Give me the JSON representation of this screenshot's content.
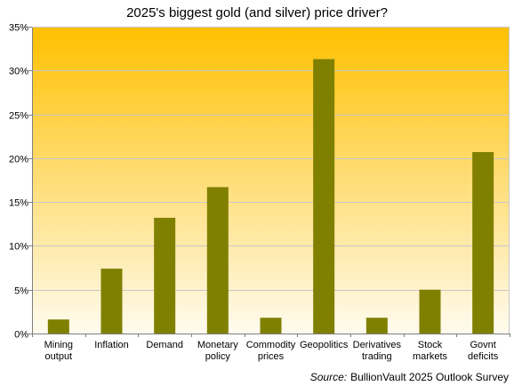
{
  "chart_data": {
    "type": "bar",
    "title": "2025's biggest gold (and silver) price driver?",
    "categories": [
      [
        "Mining",
        "output"
      ],
      [
        "Inflation"
      ],
      [
        "Demand"
      ],
      [
        "Monetary",
        "policy"
      ],
      [
        "Commodity",
        "prices"
      ],
      [
        "Geopolitics"
      ],
      [
        "Derivatives",
        "trading"
      ],
      [
        "Stock",
        "markets"
      ],
      [
        "Govnt",
        "deficits"
      ]
    ],
    "values": [
      1.6,
      7.4,
      13.2,
      16.7,
      1.8,
      31.3,
      1.8,
      5.0,
      20.7
    ],
    "ylim": [
      0,
      35
    ],
    "yticks": [
      0,
      5,
      10,
      15,
      20,
      25,
      30,
      35
    ],
    "ytick_labels": [
      "0%",
      "5%",
      "10%",
      "15%",
      "20%",
      "25%",
      "30%",
      "35%"
    ],
    "xlabel": "",
    "ylabel": "",
    "grid": true,
    "legend": "none",
    "colors": {
      "bar": "#808000",
      "bg_top": "#FFC000",
      "bg_bottom": "#FFFBEF",
      "grid": "#C8C8C8",
      "axis": "#808080"
    }
  },
  "source": {
    "label": "Source:",
    "text": "BullionVault 2025 Outlook Survey"
  }
}
